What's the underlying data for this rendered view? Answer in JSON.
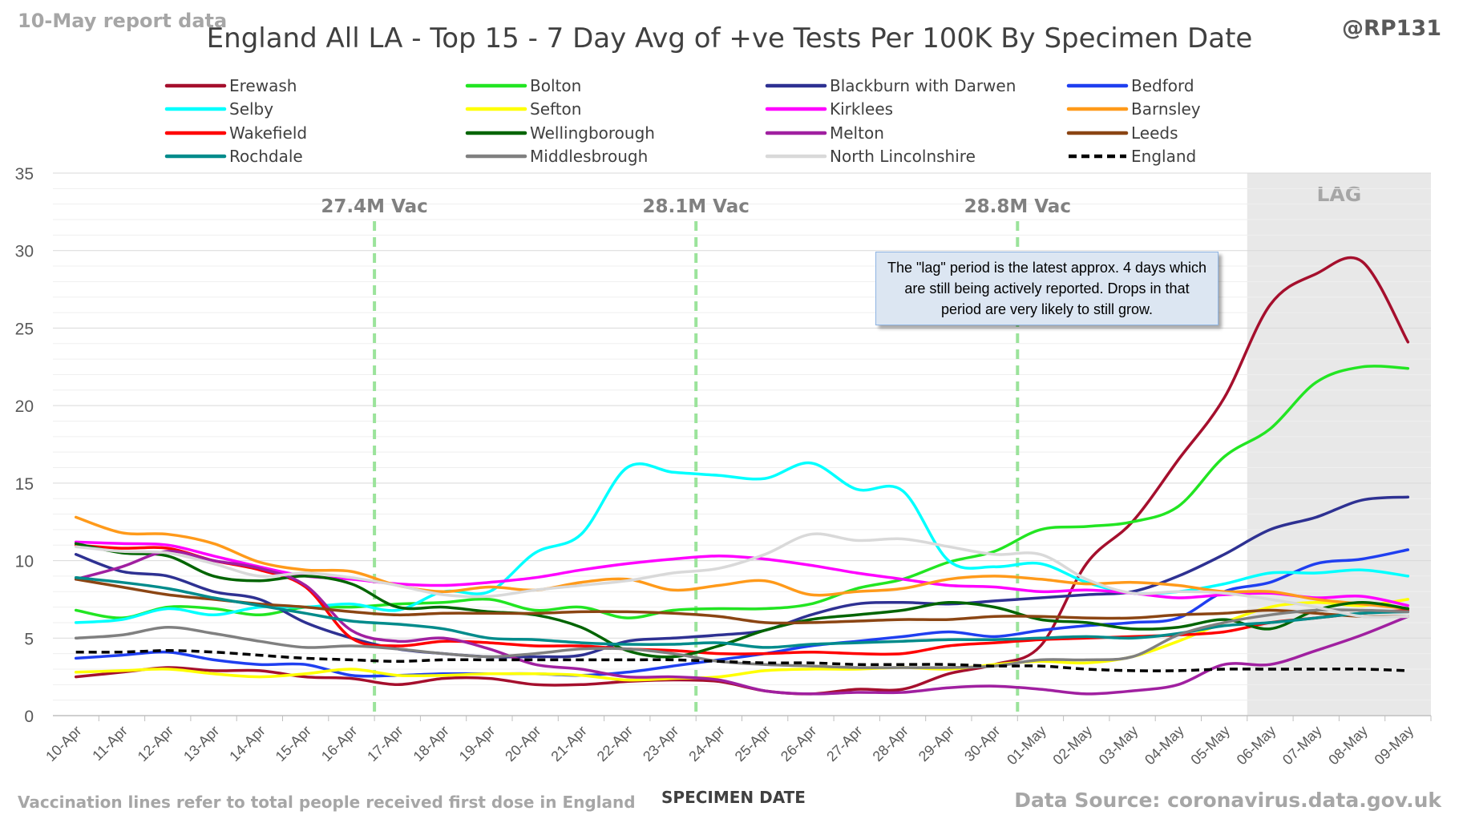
{
  "header": {
    "report_label": "10-May report data",
    "author_tag": "@RP131"
  },
  "footer": {
    "vaccination_note": "Vaccination lines refer to total people received first dose in England",
    "data_source": "Data Source: coronavirus.data.gov.uk"
  },
  "chart_data": {
    "type": "line",
    "title": "England All LA - Top 15 - 7 Day Avg of +ve Tests Per 100K By Specimen Date",
    "xlabel": "SPECIMEN DATE",
    "ylabel": "",
    "ylim": [
      0,
      35
    ],
    "yticks": [
      0,
      5,
      10,
      15,
      20,
      25,
      30,
      35
    ],
    "grid": true,
    "legend_position": "top",
    "categories": [
      "10-Apr",
      "11-Apr",
      "12-Apr",
      "13-Apr",
      "14-Apr",
      "15-Apr",
      "16-Apr",
      "17-Apr",
      "18-Apr",
      "19-Apr",
      "20-Apr",
      "21-Apr",
      "22-Apr",
      "23-Apr",
      "24-Apr",
      "25-Apr",
      "26-Apr",
      "27-Apr",
      "28-Apr",
      "29-Apr",
      "30-Apr",
      "01-May",
      "02-May",
      "03-May",
      "04-May",
      "05-May",
      "06-May",
      "07-May",
      "08-May",
      "09-May"
    ],
    "vaccination_markers": [
      {
        "date": "16-Apr",
        "label": "27.4M Vac"
      },
      {
        "date": "23-Apr",
        "label": "28.1M Vac"
      },
      {
        "date": "30-Apr",
        "label": "28.8M Vac"
      }
    ],
    "lag_region": {
      "from": "06-May",
      "to": "09-May",
      "label": "LAG"
    },
    "lag_note": "The \"lag\" period is the latest approx. 4 days which are still being actively reported. Drops in that period are very likely to still grow.",
    "series": [
      {
        "name": "Erewash",
        "color": "#a50f2d",
        "dash": false,
        "values": [
          2.5,
          2.8,
          3.1,
          2.9,
          2.9,
          2.5,
          2.4,
          2.0,
          2.4,
          2.4,
          2.0,
          2.0,
          2.2,
          2.3,
          2.2,
          1.6,
          1.4,
          1.7,
          1.7,
          2.7,
          3.3,
          4.5,
          9.8,
          12.5,
          16.5,
          20.5,
          26.5,
          28.5,
          29.3,
          24.1
        ]
      },
      {
        "name": "Bolton",
        "color": "#22e522",
        "dash": false,
        "values": [
          6.8,
          6.3,
          7.0,
          6.9,
          6.5,
          7.0,
          7.0,
          7.2,
          7.3,
          7.5,
          6.8,
          7.0,
          6.3,
          6.8,
          6.9,
          6.9,
          7.2,
          8.2,
          8.8,
          9.9,
          10.6,
          12.0,
          12.2,
          12.5,
          13.5,
          16.7,
          18.5,
          21.5,
          22.5,
          22.4
        ]
      },
      {
        "name": "Blackburn with Darwen",
        "color": "#2e3192",
        "dash": false,
        "values": [
          10.4,
          9.3,
          9.0,
          8.0,
          7.5,
          6.0,
          5.0,
          4.3,
          4.0,
          3.8,
          3.8,
          3.9,
          4.8,
          5.0,
          5.2,
          5.5,
          6.5,
          7.2,
          7.3,
          7.2,
          7.4,
          7.6,
          7.8,
          8.0,
          9.0,
          10.4,
          12.0,
          12.8,
          13.9,
          14.1
        ]
      },
      {
        "name": "Bedford",
        "color": "#1f3ff0",
        "dash": false,
        "values": [
          3.7,
          3.9,
          4.1,
          3.6,
          3.3,
          3.3,
          2.6,
          2.6,
          2.7,
          2.7,
          2.7,
          2.6,
          2.8,
          3.2,
          3.6,
          4.0,
          4.5,
          4.8,
          5.1,
          5.4,
          5.1,
          5.5,
          5.8,
          6.0,
          6.3,
          8.0,
          8.6,
          9.8,
          10.1,
          10.7
        ]
      },
      {
        "name": "Selby",
        "color": "#00ffff",
        "dash": false,
        "values": [
          6.0,
          6.2,
          6.9,
          6.5,
          7.0,
          7.0,
          7.2,
          6.8,
          8.0,
          8.0,
          10.5,
          11.7,
          16.0,
          15.7,
          15.5,
          15.3,
          16.3,
          14.6,
          14.5,
          10.0,
          9.6,
          9.8,
          8.6,
          7.9,
          8.0,
          8.5,
          9.2,
          9.2,
          9.4,
          9.0
        ]
      },
      {
        "name": "Sefton",
        "color": "#ffff00",
        "dash": false,
        "values": [
          2.8,
          2.9,
          3.0,
          2.7,
          2.5,
          2.7,
          3.0,
          2.6,
          2.6,
          2.7,
          2.7,
          2.6,
          2.3,
          2.4,
          2.5,
          2.9,
          3.0,
          3.0,
          3.1,
          3.0,
          3.3,
          3.5,
          3.4,
          3.8,
          4.8,
          6.0,
          7.0,
          7.3,
          7.1,
          7.5
        ]
      },
      {
        "name": "Kirklees",
        "color": "#ff00ff",
        "dash": false,
        "values": [
          11.2,
          11.1,
          11.0,
          10.3,
          9.6,
          9.0,
          8.8,
          8.5,
          8.4,
          8.6,
          8.9,
          9.4,
          9.8,
          10.1,
          10.3,
          10.1,
          9.7,
          9.2,
          8.8,
          8.4,
          8.3,
          8.0,
          8.1,
          7.9,
          7.6,
          7.8,
          7.9,
          7.6,
          7.7,
          7.1
        ]
      },
      {
        "name": "Barnsley",
        "color": "#ff9a1a",
        "dash": false,
        "values": [
          12.8,
          11.8,
          11.7,
          11.1,
          9.9,
          9.4,
          9.3,
          8.4,
          8.0,
          8.3,
          8.1,
          8.6,
          8.8,
          8.1,
          8.4,
          8.7,
          7.8,
          8.0,
          8.2,
          8.8,
          9.0,
          8.8,
          8.5,
          8.6,
          8.4,
          8.0,
          8.0,
          7.5,
          7.2,
          6.9
        ]
      },
      {
        "name": "Wakefield",
        "color": "#ff0000",
        "dash": false,
        "values": [
          11.0,
          10.8,
          10.8,
          10.0,
          9.4,
          8.3,
          5.0,
          4.5,
          4.8,
          4.7,
          4.5,
          4.5,
          4.3,
          4.2,
          4.0,
          4.0,
          4.1,
          4.0,
          4.0,
          4.5,
          4.7,
          4.9,
          5.0,
          5.1,
          5.2,
          5.4,
          6.0,
          6.3,
          6.6,
          6.8
        ]
      },
      {
        "name": "Wellingborough",
        "color": "#006400",
        "dash": false,
        "values": [
          11.1,
          10.5,
          10.3,
          9.0,
          8.7,
          9.0,
          8.5,
          7.0,
          7.0,
          6.7,
          6.5,
          5.7,
          4.2,
          3.8,
          4.5,
          5.5,
          6.2,
          6.5,
          6.8,
          7.3,
          7.0,
          6.2,
          6.0,
          5.6,
          5.7,
          6.2,
          5.6,
          6.8,
          7.3,
          6.9
        ]
      },
      {
        "name": "Melton",
        "color": "#a020a0",
        "dash": false,
        "values": [
          8.8,
          9.6,
          10.6,
          10.0,
          9.5,
          8.4,
          5.5,
          4.8,
          5.0,
          4.3,
          3.3,
          3.0,
          2.5,
          2.5,
          2.3,
          1.6,
          1.4,
          1.5,
          1.5,
          1.8,
          1.9,
          1.7,
          1.4,
          1.6,
          2.0,
          3.3,
          3.3,
          4.2,
          5.2,
          6.4
        ]
      },
      {
        "name": "Leeds",
        "color": "#8b4513",
        "dash": false,
        "values": [
          8.8,
          8.3,
          7.8,
          7.5,
          7.2,
          7.0,
          6.7,
          6.5,
          6.6,
          6.6,
          6.6,
          6.7,
          6.7,
          6.6,
          6.4,
          6.0,
          6.0,
          6.1,
          6.2,
          6.2,
          6.4,
          6.4,
          6.3,
          6.3,
          6.5,
          6.6,
          6.8,
          6.6,
          6.4,
          6.4
        ]
      },
      {
        "name": "Rochdale",
        "color": "#008b8b",
        "dash": false,
        "values": [
          8.9,
          8.6,
          8.2,
          7.6,
          7.1,
          6.6,
          6.1,
          5.9,
          5.6,
          5.0,
          4.9,
          4.7,
          4.6,
          4.6,
          4.7,
          4.4,
          4.6,
          4.7,
          4.8,
          4.9,
          4.9,
          5.0,
          5.1,
          5.0,
          5.3,
          5.8,
          6.0,
          6.3,
          6.6,
          6.7
        ]
      },
      {
        "name": "Middlesbrough",
        "color": "#808080",
        "dash": false,
        "values": [
          5.0,
          5.2,
          5.7,
          5.3,
          4.8,
          4.4,
          4.5,
          4.3,
          4.0,
          3.8,
          4.0,
          4.3,
          4.3,
          4.0,
          3.5,
          3.3,
          3.2,
          3.1,
          3.1,
          3.1,
          3.2,
          3.6,
          3.6,
          3.8,
          5.2,
          6.0,
          6.5,
          6.8,
          6.8,
          6.7
        ]
      },
      {
        "name": "North Lincolnshire",
        "color": "#d9d9d9",
        "dash": false,
        "values": [
          10.9,
          10.6,
          10.5,
          9.8,
          9.0,
          9.2,
          8.9,
          8.4,
          7.8,
          7.7,
          8.1,
          8.4,
          8.7,
          9.2,
          9.5,
          10.4,
          11.7,
          11.3,
          11.4,
          10.9,
          10.4,
          10.4,
          8.8,
          7.9,
          8.0,
          7.9,
          7.5,
          7.0,
          6.4,
          6.4
        ]
      },
      {
        "name": "England",
        "color": "#000000",
        "dash": true,
        "values": [
          4.1,
          4.1,
          4.2,
          4.1,
          3.9,
          3.7,
          3.6,
          3.5,
          3.6,
          3.6,
          3.6,
          3.6,
          3.6,
          3.6,
          3.5,
          3.4,
          3.4,
          3.3,
          3.3,
          3.3,
          3.2,
          3.2,
          3.0,
          2.9,
          2.9,
          3.0,
          3.0,
          3.0,
          3.0,
          2.9
        ]
      }
    ]
  }
}
